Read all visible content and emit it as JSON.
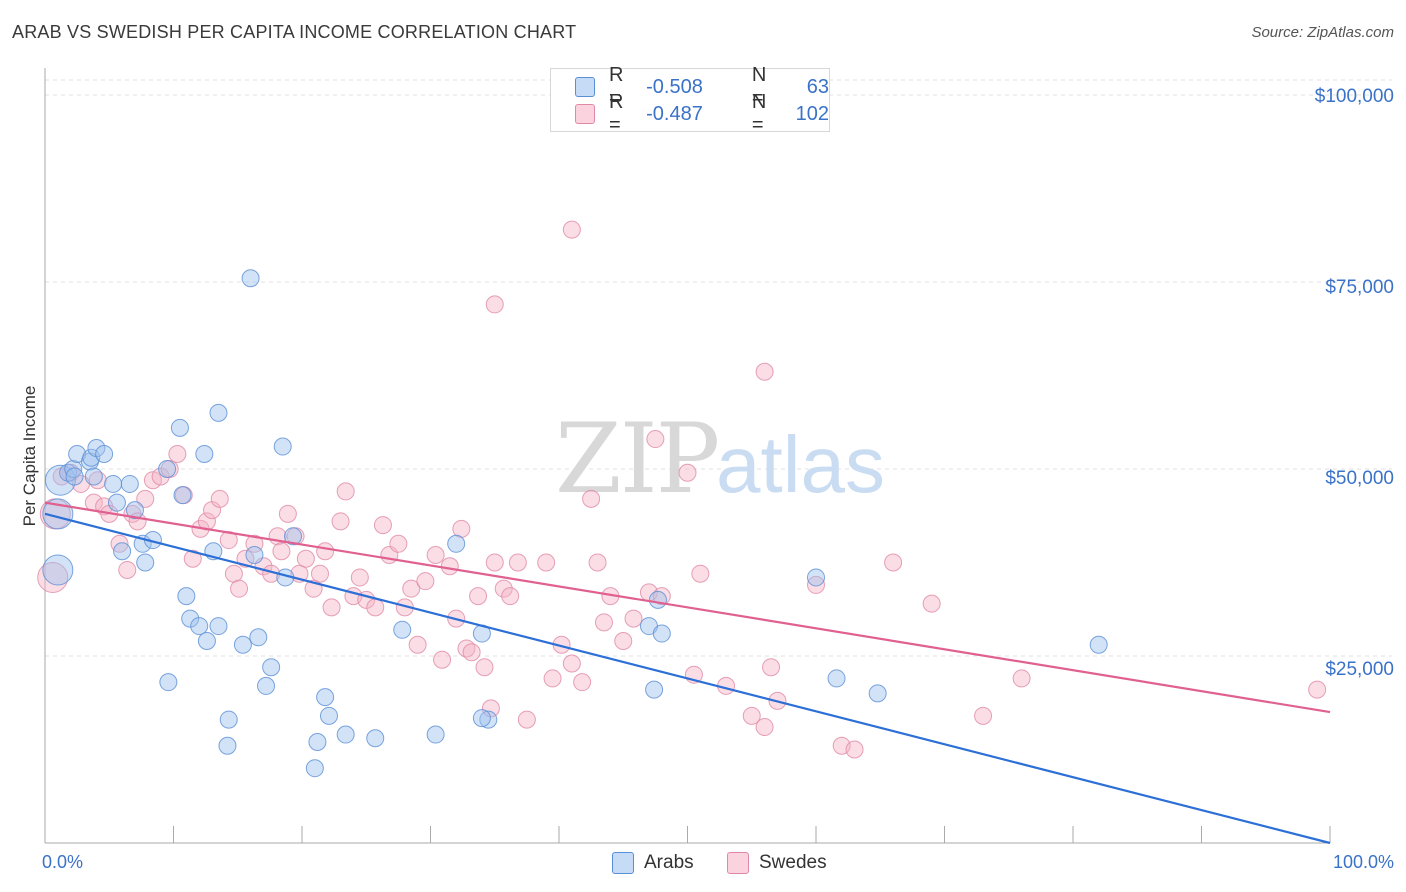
{
  "title": "ARAB VS SWEDISH PER CAPITA INCOME CORRELATION CHART",
  "source": "Source: ZipAtlas.com",
  "watermark": {
    "zip": "ZIP",
    "atlas": "atlas"
  },
  "legend": {
    "rows": [
      {
        "r_label": "R =",
        "r_value": "-0.508",
        "n_label": "N =",
        "n_value": "63",
        "color": "#9ec0ee"
      },
      {
        "r_label": "R =",
        "r_value": "-0.487",
        "n_label": "N =",
        "n_value": "102",
        "color": "#f4b4c6"
      }
    ]
  },
  "chart_data": {
    "type": "scatter",
    "title": "ARAB VS SWEDISH PER CAPITA INCOME CORRELATION CHART",
    "xlabel": "",
    "ylabel": "Per Capita Income",
    "xlim": [
      0,
      100
    ],
    "ylim": [
      0,
      102000
    ],
    "x_tick_labels": [
      "0.0%",
      "100.0%"
    ],
    "y_ticks": [
      25000,
      50000,
      75000,
      100000
    ],
    "y_tick_labels": [
      "$25,000",
      "$50,000",
      "$75,000",
      "$100,000"
    ],
    "grid": true,
    "legend_position": "top-center",
    "series": [
      {
        "name": "Arabs",
        "color": "#9ec0ee",
        "stroke": "#5a8fd6",
        "trend_color": "#2c6fd6",
        "trend": {
          "x": [
            0,
            100
          ],
          "y": [
            44000,
            0
          ]
        },
        "points": [
          [
            1.0,
            36500
          ],
          [
            1.0,
            44000
          ],
          [
            1.2,
            48500
          ],
          [
            1.8,
            49500
          ],
          [
            2.2,
            50000
          ],
          [
            2.3,
            49000
          ],
          [
            2.5,
            52000
          ],
          [
            3.5,
            51000
          ],
          [
            3.6,
            51500
          ],
          [
            3.8,
            49000
          ],
          [
            4.0,
            52800
          ],
          [
            4.6,
            52000
          ],
          [
            5.3,
            48000
          ],
          [
            5.6,
            45500
          ],
          [
            6.0,
            39000
          ],
          [
            6.6,
            48000
          ],
          [
            7.0,
            44500
          ],
          [
            7.6,
            40000
          ],
          [
            7.8,
            37500
          ],
          [
            8.4,
            40500
          ],
          [
            9.5,
            50000
          ],
          [
            9.6,
            21500
          ],
          [
            10.5,
            55500
          ],
          [
            10.7,
            46500
          ],
          [
            11.0,
            33000
          ],
          [
            11.3,
            30000
          ],
          [
            12.0,
            29000
          ],
          [
            12.4,
            52000
          ],
          [
            12.6,
            27000
          ],
          [
            13.1,
            39000
          ],
          [
            13.5,
            29000
          ],
          [
            13.5,
            57500
          ],
          [
            14.3,
            16500
          ],
          [
            14.2,
            13000
          ],
          [
            15.4,
            26500
          ],
          [
            16.0,
            75500
          ],
          [
            16.3,
            38500
          ],
          [
            16.6,
            27500
          ],
          [
            17.2,
            21000
          ],
          [
            17.6,
            23500
          ],
          [
            18.5,
            53000
          ],
          [
            18.7,
            35500
          ],
          [
            19.3,
            41000
          ],
          [
            21.0,
            10000
          ],
          [
            21.2,
            13500
          ],
          [
            21.8,
            19500
          ],
          [
            22.1,
            17000
          ],
          [
            23.4,
            14500
          ],
          [
            25.7,
            14000
          ],
          [
            27.8,
            28500
          ],
          [
            30.4,
            14500
          ],
          [
            32.0,
            40000
          ],
          [
            34.0,
            28000
          ],
          [
            34.5,
            16500
          ],
          [
            47.0,
            29000
          ],
          [
            48.0,
            28000
          ],
          [
            47.4,
            20500
          ],
          [
            47.7,
            32500
          ],
          [
            60.0,
            35500
          ],
          [
            61.6,
            22000
          ],
          [
            64.8,
            20000
          ],
          [
            82.0,
            26500
          ],
          [
            34.0,
            16700
          ]
        ]
      },
      {
        "name": "Swedes",
        "color": "#f4b4c6",
        "stroke": "#e089a6",
        "trend_color": "#e06090",
        "trend": {
          "x": [
            0,
            100
          ],
          "y": [
            45500,
            17500
          ]
        },
        "points": [
          [
            0.6,
            35500
          ],
          [
            0.8,
            44000
          ],
          [
            1.3,
            49000
          ],
          [
            2.0,
            49500
          ],
          [
            2.8,
            48000
          ],
          [
            3.8,
            45500
          ],
          [
            4.1,
            48500
          ],
          [
            4.6,
            45000
          ],
          [
            5.0,
            44000
          ],
          [
            5.8,
            40000
          ],
          [
            6.4,
            36500
          ],
          [
            6.8,
            44000
          ],
          [
            7.2,
            43000
          ],
          [
            7.8,
            46000
          ],
          [
            8.4,
            48500
          ],
          [
            9.0,
            49000
          ],
          [
            9.7,
            50000
          ],
          [
            10.3,
            52000
          ],
          [
            10.8,
            46500
          ],
          [
            11.5,
            38000
          ],
          [
            12.1,
            42000
          ],
          [
            12.6,
            43000
          ],
          [
            13.0,
            44500
          ],
          [
            13.6,
            46000
          ],
          [
            14.3,
            40500
          ],
          [
            14.7,
            36000
          ],
          [
            15.1,
            34000
          ],
          [
            15.6,
            38000
          ],
          [
            16.3,
            40000
          ],
          [
            17.0,
            37000
          ],
          [
            17.6,
            36000
          ],
          [
            18.1,
            41000
          ],
          [
            18.4,
            39000
          ],
          [
            18.9,
            44000
          ],
          [
            19.5,
            41000
          ],
          [
            19.8,
            36000
          ],
          [
            20.3,
            38000
          ],
          [
            20.9,
            34000
          ],
          [
            21.4,
            36000
          ],
          [
            21.8,
            39000
          ],
          [
            22.3,
            31500
          ],
          [
            23.0,
            43000
          ],
          [
            23.4,
            47000
          ],
          [
            24.0,
            33000
          ],
          [
            24.5,
            35500
          ],
          [
            25.0,
            32500
          ],
          [
            25.7,
            31500
          ],
          [
            26.3,
            42500
          ],
          [
            26.8,
            38500
          ],
          [
            27.5,
            40000
          ],
          [
            28.0,
            31500
          ],
          [
            28.5,
            34000
          ],
          [
            29.0,
            26500
          ],
          [
            29.6,
            35000
          ],
          [
            30.4,
            38500
          ],
          [
            30.9,
            24500
          ],
          [
            31.5,
            37000
          ],
          [
            32.0,
            30000
          ],
          [
            32.4,
            42000
          ],
          [
            32.8,
            26000
          ],
          [
            33.2,
            25500
          ],
          [
            33.7,
            33000
          ],
          [
            34.2,
            23500
          ],
          [
            34.7,
            18000
          ],
          [
            35.0,
            37500
          ],
          [
            35.7,
            34000
          ],
          [
            36.2,
            33000
          ],
          [
            36.8,
            37500
          ],
          [
            37.5,
            16500
          ],
          [
            39.0,
            37500
          ],
          [
            39.5,
            22000
          ],
          [
            40.2,
            26500
          ],
          [
            41.0,
            24000
          ],
          [
            41.8,
            21500
          ],
          [
            42.5,
            46000
          ],
          [
            43.0,
            37500
          ],
          [
            43.5,
            29500
          ],
          [
            44.0,
            33000
          ],
          [
            45.0,
            27000
          ],
          [
            45.8,
            30000
          ],
          [
            47.0,
            33500
          ],
          [
            47.5,
            54000
          ],
          [
            48.0,
            33000
          ],
          [
            50.0,
            49500
          ],
          [
            50.5,
            22500
          ],
          [
            51.0,
            36000
          ],
          [
            53.0,
            21000
          ],
          [
            55.0,
            17000
          ],
          [
            56.0,
            15500
          ],
          [
            57.0,
            19000
          ],
          [
            60.0,
            34500
          ],
          [
            62.0,
            13000
          ],
          [
            63.0,
            12500
          ],
          [
            66.0,
            37500
          ],
          [
            69.0,
            32000
          ],
          [
            73.0,
            17000
          ],
          [
            76.0,
            22000
          ],
          [
            99.0,
            20500
          ],
          [
            41.0,
            82000
          ],
          [
            35.0,
            72000
          ],
          [
            56.0,
            63000
          ],
          [
            56.5,
            23500
          ]
        ]
      }
    ]
  }
}
